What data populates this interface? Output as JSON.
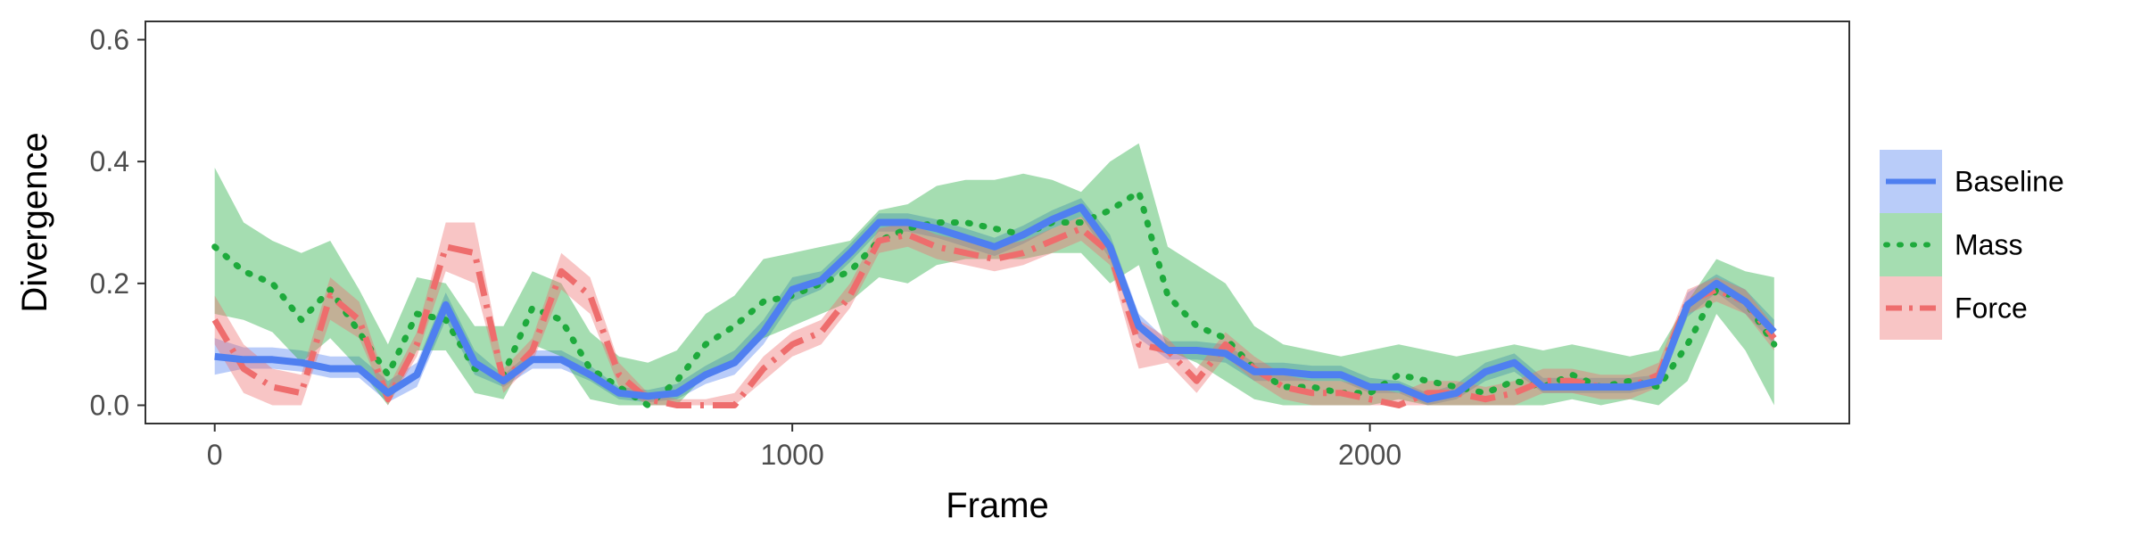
{
  "chart_data": {
    "type": "line",
    "title": "",
    "xlabel": "Frame",
    "ylabel": "Divergence",
    "xlim": [
      -120,
      2830
    ],
    "ylim": [
      -0.03,
      0.63
    ],
    "x_ticks": [
      0,
      1000,
      2000
    ],
    "x_tick_labels": [
      "0",
      "1000",
      "2000"
    ],
    "y_ticks": [
      0.0,
      0.2,
      0.4,
      0.6
    ],
    "y_tick_labels": [
      "0.0",
      "0.2",
      "0.4",
      "0.6"
    ],
    "grid": false,
    "legend_position": "right",
    "x": [
      0,
      50,
      100,
      150,
      200,
      250,
      300,
      350,
      400,
      450,
      500,
      550,
      600,
      650,
      700,
      750,
      800,
      850,
      900,
      950,
      1000,
      1050,
      1100,
      1150,
      1200,
      1250,
      1300,
      1350,
      1400,
      1450,
      1500,
      1550,
      1600,
      1650,
      1700,
      1750,
      1800,
      1850,
      1900,
      1950,
      2000,
      2050,
      2100,
      2150,
      2200,
      2250,
      2300,
      2350,
      2400,
      2450,
      2500,
      2550,
      2600,
      2650,
      2700
    ],
    "series": [
      {
        "name": "Baseline",
        "color": "#4f7ff0",
        "dash": "solid",
        "y": [
          0.08,
          0.075,
          0.075,
          0.07,
          0.06,
          0.06,
          0.02,
          0.05,
          0.165,
          0.07,
          0.04,
          0.075,
          0.075,
          0.05,
          0.02,
          0.015,
          0.02,
          0.05,
          0.07,
          0.12,
          0.19,
          0.205,
          0.25,
          0.3,
          0.3,
          0.29,
          0.275,
          0.26,
          0.28,
          0.305,
          0.325,
          0.26,
          0.13,
          0.09,
          0.09,
          0.085,
          0.055,
          0.055,
          0.05,
          0.05,
          0.03,
          0.03,
          0.01,
          0.02,
          0.055,
          0.07,
          0.03,
          0.03,
          0.03,
          0.03,
          0.04,
          0.165,
          0.2,
          0.17,
          0.12
        ],
        "lower": [
          0.05,
          0.06,
          0.06,
          0.055,
          0.045,
          0.045,
          0.005,
          0.03,
          0.14,
          0.05,
          0.03,
          0.06,
          0.06,
          0.04,
          0.01,
          0.005,
          0.01,
          0.035,
          0.05,
          0.1,
          0.17,
          0.19,
          0.235,
          0.285,
          0.285,
          0.275,
          0.26,
          0.245,
          0.265,
          0.29,
          0.31,
          0.24,
          0.11,
          0.075,
          0.075,
          0.07,
          0.04,
          0.04,
          0.04,
          0.04,
          0.02,
          0.02,
          0.0,
          0.01,
          0.04,
          0.055,
          0.02,
          0.02,
          0.02,
          0.02,
          0.03,
          0.145,
          0.185,
          0.15,
          0.1
        ],
        "upper": [
          0.11,
          0.095,
          0.095,
          0.09,
          0.08,
          0.08,
          0.04,
          0.07,
          0.185,
          0.09,
          0.05,
          0.09,
          0.09,
          0.065,
          0.03,
          0.025,
          0.035,
          0.065,
          0.09,
          0.14,
          0.21,
          0.22,
          0.265,
          0.315,
          0.315,
          0.305,
          0.29,
          0.275,
          0.295,
          0.32,
          0.34,
          0.28,
          0.15,
          0.105,
          0.105,
          0.1,
          0.07,
          0.07,
          0.065,
          0.065,
          0.045,
          0.04,
          0.02,
          0.035,
          0.07,
          0.085,
          0.045,
          0.045,
          0.045,
          0.045,
          0.05,
          0.185,
          0.215,
          0.19,
          0.14
        ]
      },
      {
        "name": "Mass",
        "color": "#1eaa3c",
        "dash": "dotted",
        "y": [
          0.26,
          0.22,
          0.2,
          0.14,
          0.19,
          0.12,
          0.05,
          0.15,
          0.14,
          0.06,
          0.05,
          0.16,
          0.14,
          0.06,
          0.03,
          0.0,
          0.04,
          0.1,
          0.13,
          0.17,
          0.18,
          0.2,
          0.22,
          0.27,
          0.29,
          0.3,
          0.3,
          0.29,
          0.28,
          0.3,
          0.3,
          0.32,
          0.35,
          0.18,
          0.13,
          0.11,
          0.06,
          0.03,
          0.03,
          0.02,
          0.02,
          0.05,
          0.04,
          0.03,
          0.02,
          0.04,
          0.03,
          0.05,
          0.03,
          0.04,
          0.03,
          0.1,
          0.19,
          0.17,
          0.1
        ],
        "lower": [
          0.15,
          0.14,
          0.12,
          0.07,
          0.11,
          0.06,
          0.0,
          0.09,
          0.09,
          0.02,
          0.01,
          0.1,
          0.08,
          0.01,
          0.0,
          0.0,
          0.0,
          0.05,
          0.07,
          0.11,
          0.13,
          0.15,
          0.17,
          0.21,
          0.2,
          0.23,
          0.24,
          0.24,
          0.24,
          0.25,
          0.25,
          0.2,
          0.23,
          0.09,
          0.07,
          0.04,
          0.01,
          0.0,
          0.0,
          0.0,
          0.0,
          0.01,
          0.0,
          0.0,
          0.0,
          0.0,
          0.0,
          0.01,
          0.0,
          0.01,
          0.0,
          0.04,
          0.15,
          0.09,
          0.0
        ],
        "upper": [
          0.39,
          0.3,
          0.27,
          0.25,
          0.27,
          0.19,
          0.1,
          0.21,
          0.2,
          0.13,
          0.13,
          0.22,
          0.2,
          0.12,
          0.08,
          0.07,
          0.09,
          0.15,
          0.18,
          0.24,
          0.25,
          0.26,
          0.27,
          0.32,
          0.33,
          0.36,
          0.37,
          0.37,
          0.38,
          0.37,
          0.35,
          0.4,
          0.43,
          0.26,
          0.23,
          0.2,
          0.13,
          0.1,
          0.09,
          0.08,
          0.09,
          0.1,
          0.09,
          0.08,
          0.09,
          0.1,
          0.09,
          0.1,
          0.09,
          0.08,
          0.09,
          0.17,
          0.24,
          0.22,
          0.21
        ]
      },
      {
        "name": "Force",
        "color": "#ee6d6d",
        "dash": "dash-dot",
        "y": [
          0.14,
          0.06,
          0.03,
          0.02,
          0.18,
          0.14,
          0.01,
          0.1,
          0.26,
          0.25,
          0.04,
          0.09,
          0.22,
          0.18,
          0.05,
          0.01,
          0.0,
          0.0,
          0.0,
          0.06,
          0.1,
          0.12,
          0.18,
          0.27,
          0.28,
          0.26,
          0.25,
          0.24,
          0.25,
          0.27,
          0.29,
          0.25,
          0.1,
          0.09,
          0.04,
          0.1,
          0.06,
          0.03,
          0.02,
          0.02,
          0.01,
          0.0,
          0.02,
          0.02,
          0.01,
          0.02,
          0.04,
          0.04,
          0.03,
          0.03,
          0.05,
          0.17,
          0.19,
          0.17,
          0.11
        ],
        "lower": [
          0.1,
          0.02,
          0.0,
          0.0,
          0.14,
          0.11,
          0.0,
          0.08,
          0.22,
          0.2,
          0.02,
          0.07,
          0.19,
          0.15,
          0.03,
          0.0,
          0.0,
          0.0,
          0.0,
          0.04,
          0.08,
          0.1,
          0.16,
          0.25,
          0.26,
          0.24,
          0.23,
          0.22,
          0.23,
          0.25,
          0.27,
          0.23,
          0.06,
          0.07,
          0.02,
          0.08,
          0.04,
          0.01,
          0.0,
          0.0,
          0.0,
          0.0,
          0.0,
          0.0,
          0.0,
          0.0,
          0.02,
          0.02,
          0.01,
          0.01,
          0.03,
          0.15,
          0.17,
          0.15,
          0.09
        ],
        "upper": [
          0.18,
          0.1,
          0.06,
          0.05,
          0.21,
          0.17,
          0.03,
          0.12,
          0.3,
          0.3,
          0.06,
          0.11,
          0.25,
          0.21,
          0.07,
          0.02,
          0.01,
          0.01,
          0.02,
          0.08,
          0.12,
          0.14,
          0.2,
          0.29,
          0.3,
          0.28,
          0.27,
          0.26,
          0.27,
          0.29,
          0.31,
          0.27,
          0.14,
          0.11,
          0.06,
          0.12,
          0.08,
          0.05,
          0.04,
          0.04,
          0.03,
          0.02,
          0.04,
          0.04,
          0.03,
          0.04,
          0.06,
          0.06,
          0.05,
          0.05,
          0.07,
          0.19,
          0.21,
          0.19,
          0.13
        ]
      }
    ]
  }
}
